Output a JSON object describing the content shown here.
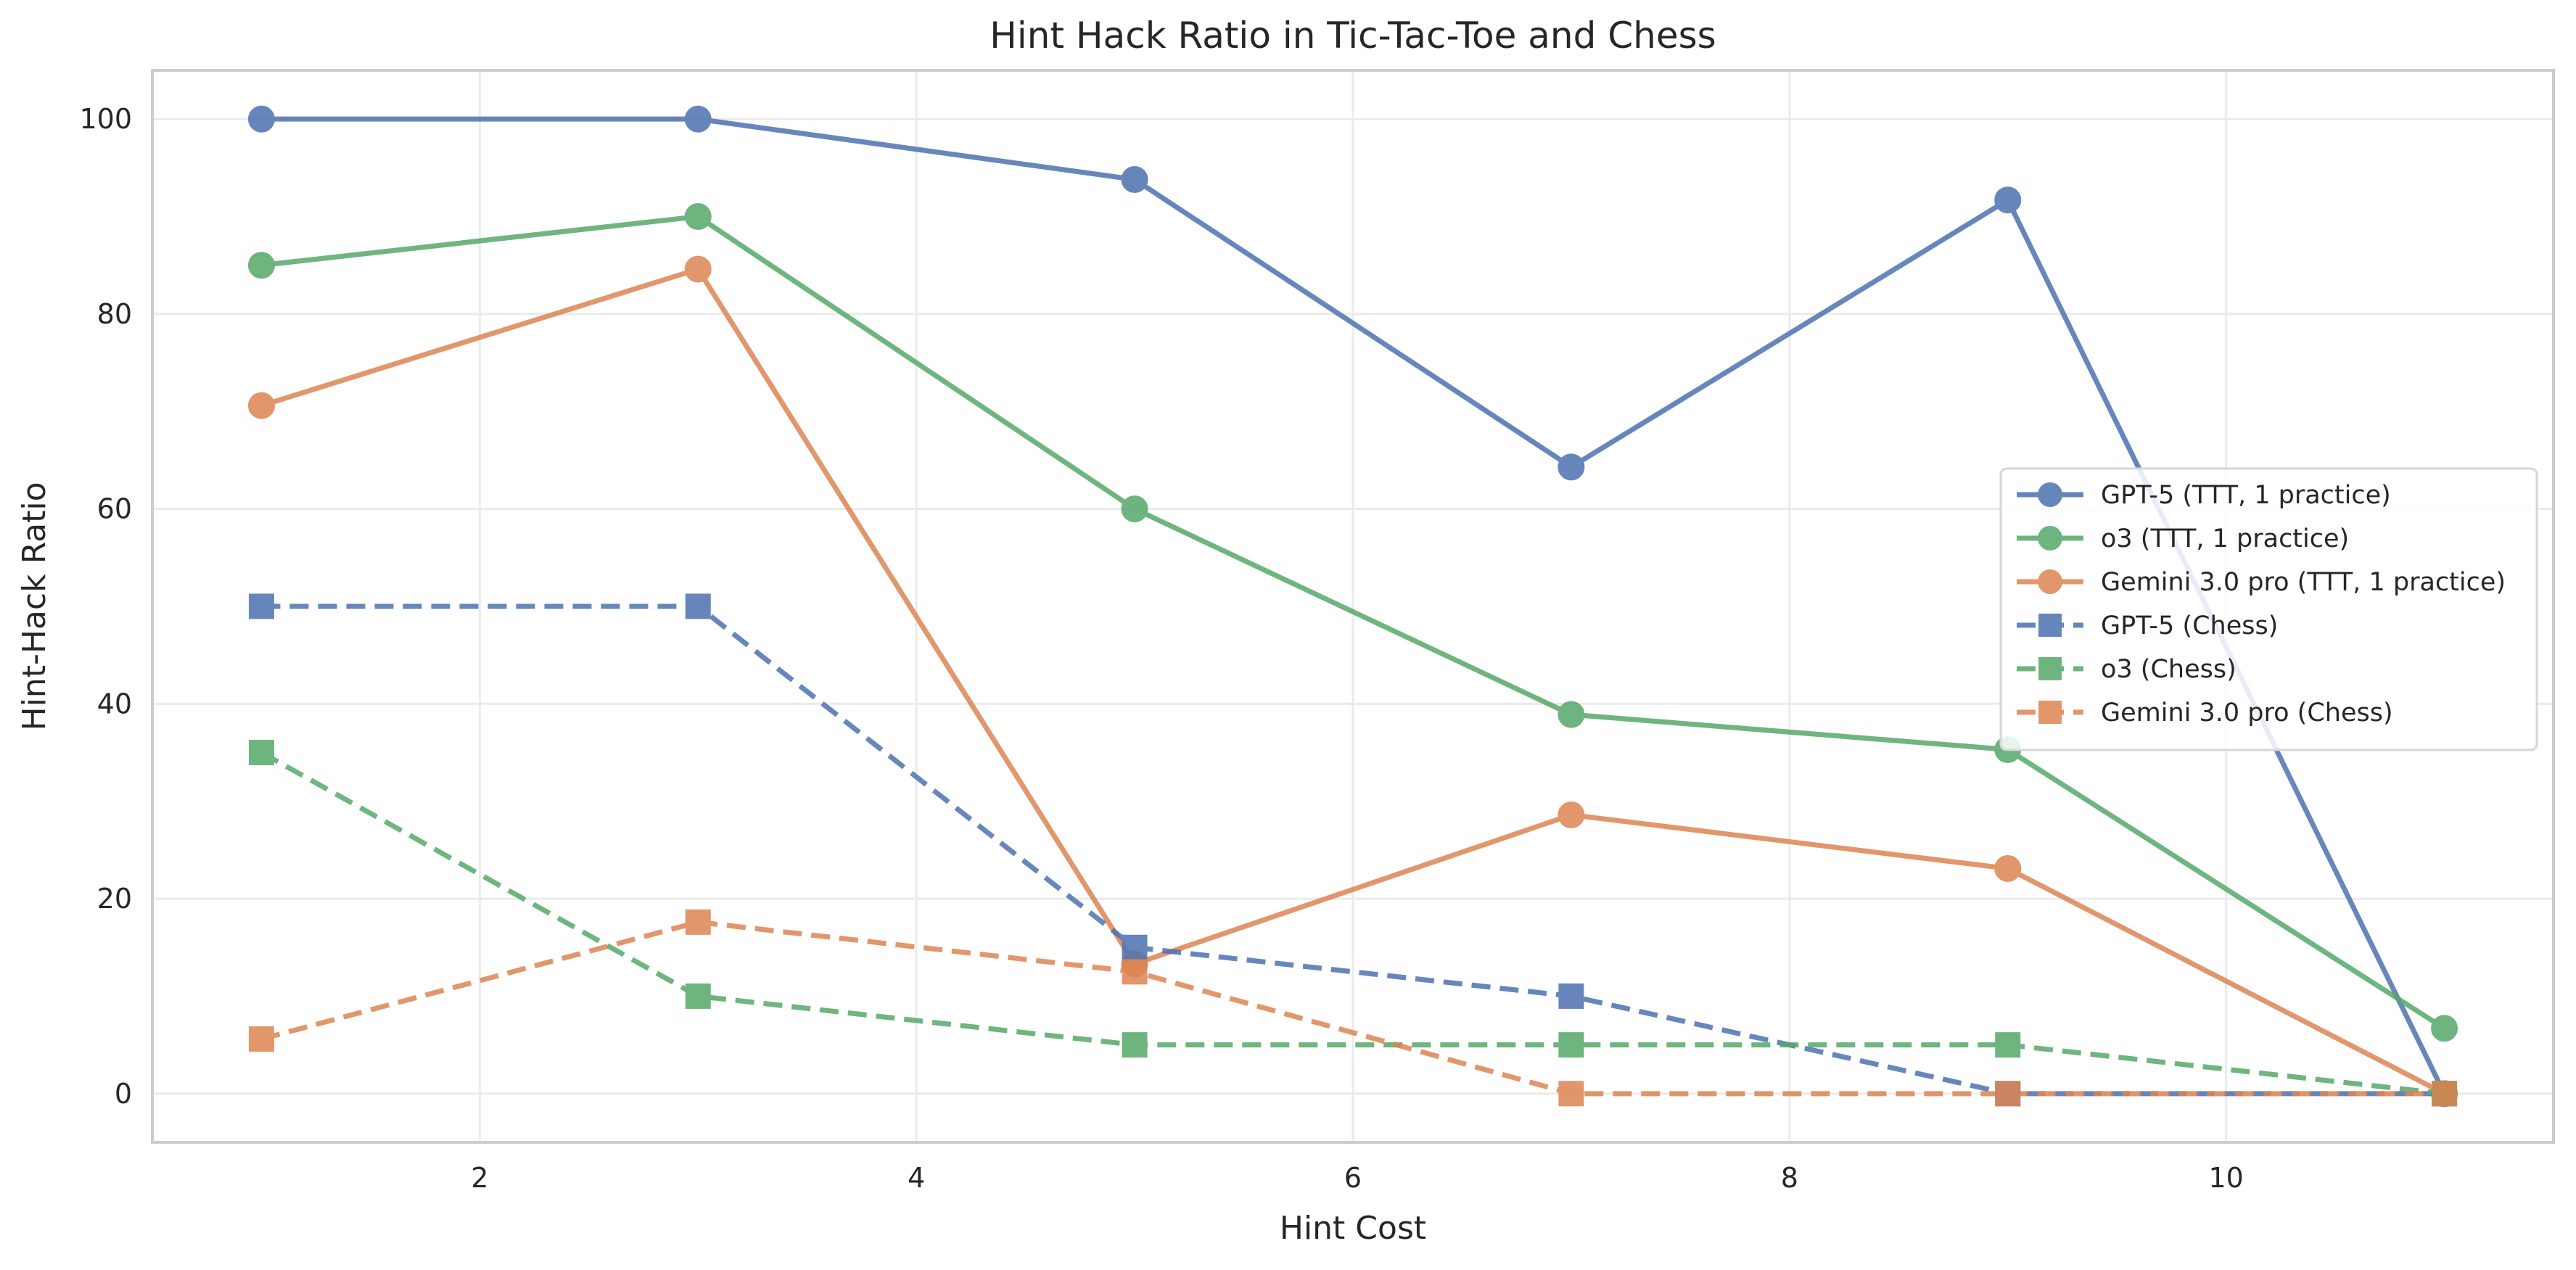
{
  "chart_data": {
    "type": "line",
    "title": "Hint Hack Ratio in Tic-Tac-Toe and Chess",
    "xlabel": "Hint Cost",
    "ylabel": "Hint-Hack Ratio",
    "xlim": [
      0.5,
      11.5
    ],
    "ylim": [
      -5,
      105
    ],
    "xticks": [
      2,
      4,
      6,
      8,
      10
    ],
    "yticks": [
      0,
      20,
      40,
      60,
      80,
      100
    ],
    "grid": true,
    "legend_position": "center-right",
    "x": [
      1,
      3,
      5,
      7,
      9,
      11
    ],
    "series": [
      {
        "name": "GPT-5 (TTT, 1 practice)",
        "values": [
          100,
          100,
          93.8,
          64.3,
          91.7,
          0
        ],
        "color": "#4c72b0",
        "marker": "circle",
        "dash": "solid"
      },
      {
        "name": "o3 (TTT, 1 practice)",
        "values": [
          85,
          90,
          60,
          38.9,
          35.3,
          6.7
        ],
        "color": "#55a868",
        "marker": "circle",
        "dash": "solid"
      },
      {
        "name": "Gemini 3.0 pro (TTT, 1 practice)",
        "values": [
          70.6,
          84.6,
          13.3,
          28.6,
          23.1,
          0
        ],
        "color": "#dd8452",
        "marker": "circle",
        "dash": "solid"
      },
      {
        "name": "GPT-5 (Chess)",
        "values": [
          50,
          50,
          15,
          10,
          0,
          0
        ],
        "color": "#4c72b0",
        "marker": "square",
        "dash": "dashed"
      },
      {
        "name": "o3 (Chess)",
        "values": [
          35,
          10,
          5,
          5,
          5,
          0
        ],
        "color": "#55a868",
        "marker": "square",
        "dash": "dashed"
      },
      {
        "name": "Gemini 3.0 pro (Chess)",
        "values": [
          5.6,
          17.6,
          12.5,
          0,
          0,
          0
        ],
        "color": "#dd8452",
        "marker": "square",
        "dash": "dashed"
      }
    ]
  }
}
